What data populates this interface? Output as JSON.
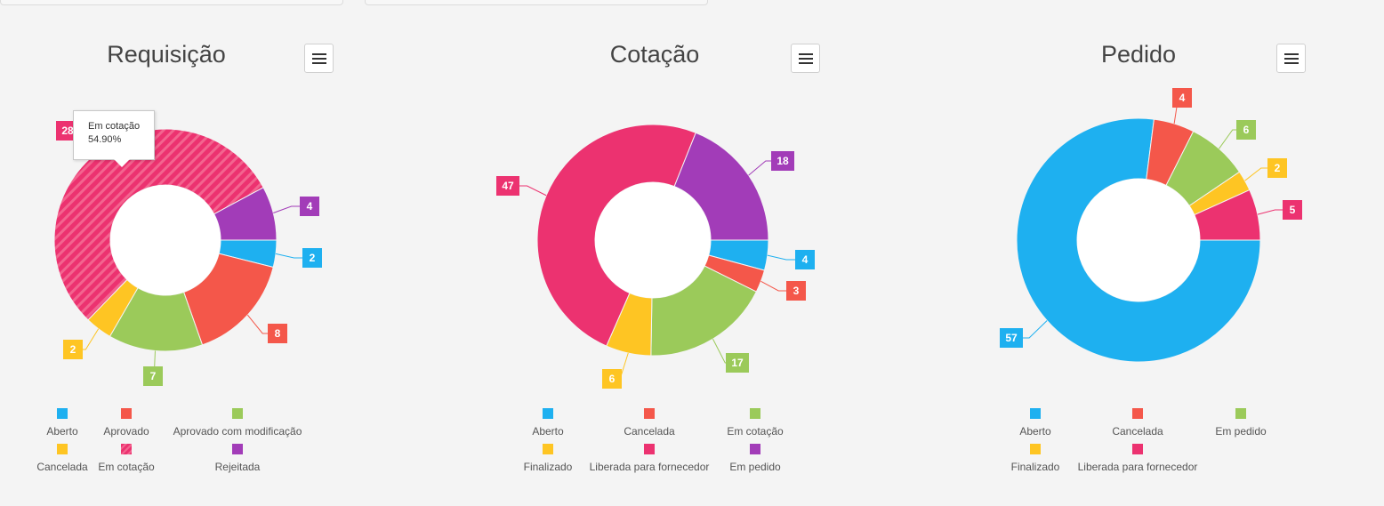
{
  "colors": {
    "aberto": "#1eb0f0",
    "red": "#f4574a",
    "green": "#9bca5a",
    "yellow": "#fec523",
    "pink": "#ec3270",
    "purple": "#a23cb8"
  },
  "chart_data": [
    {
      "type": "pie",
      "title": "Requisição",
      "slices": [
        {
          "name": "Aberto",
          "value": 2,
          "color": "#1eb0f0",
          "label": "2"
        },
        {
          "name": "Aprovado",
          "value": 8,
          "color": "#f4574a",
          "label": "8"
        },
        {
          "name": "Aprovado com modificação",
          "value": 7,
          "color": "#9bca5a",
          "label": "7"
        },
        {
          "name": "Cancelada",
          "value": 2,
          "color": "#fec523",
          "label": "2"
        },
        {
          "name": "Em cotação",
          "value": 28,
          "color": "#ec3270",
          "label": "28",
          "pattern": true
        },
        {
          "name": "Rejeitada",
          "value": 4,
          "color": "#a23cb8",
          "label": "4"
        }
      ],
      "tooltip": {
        "name": "Em cotação",
        "value": "54.90%"
      }
    },
    {
      "type": "pie",
      "title": "Cotação",
      "slices": [
        {
          "name": "Aberto",
          "value": 4,
          "color": "#1eb0f0",
          "label": "4"
        },
        {
          "name": "Cancelada",
          "value": 3,
          "color": "#f4574a",
          "label": "3"
        },
        {
          "name": "Em cotação",
          "value": 17,
          "color": "#9bca5a",
          "label": "17"
        },
        {
          "name": "Finalizado",
          "value": 6,
          "color": "#fec523",
          "label": "6"
        },
        {
          "name": "Liberada para fornecedor",
          "value": 47,
          "color": "#ec3270",
          "label": "47"
        },
        {
          "name": "Em pedido",
          "value": 18,
          "color": "#a23cb8",
          "label": "18"
        }
      ]
    },
    {
      "type": "pie",
      "title": "Pedido",
      "slices": [
        {
          "name": "Aberto",
          "value": 57,
          "color": "#1eb0f0",
          "label": "57"
        },
        {
          "name": "Cancelada",
          "value": 4,
          "color": "#f4574a",
          "label": "4"
        },
        {
          "name": "Em pedido",
          "value": 6,
          "color": "#9bca5a",
          "label": "6"
        },
        {
          "name": "Finalizado",
          "value": 2,
          "color": "#fec523",
          "label": "2"
        },
        {
          "name": "Liberada para fornecedor",
          "value": 5,
          "color": "#ec3270",
          "label": "5"
        }
      ]
    }
  ]
}
